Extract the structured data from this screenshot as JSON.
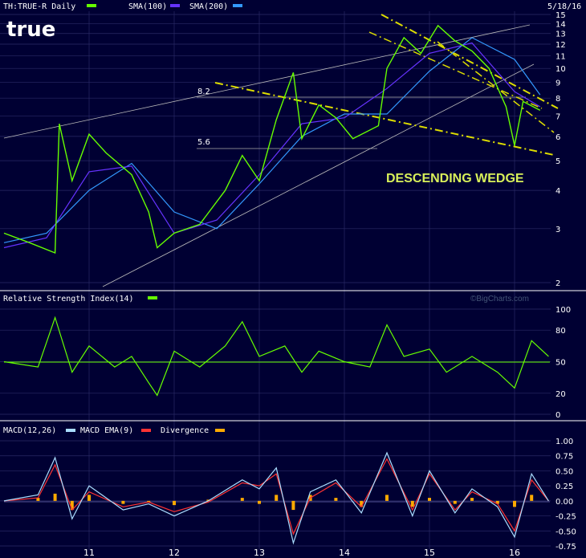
{
  "header": {
    "ticker_label": "TH:TRUE-R Daily",
    "sma100_label": "SMA(100)",
    "sma200_label": "SMA(200)",
    "date": "5/18/16",
    "logo": "true"
  },
  "annotations": {
    "level_high": "8.2",
    "level_low": "5.6",
    "pattern": "DESCENDING WEDGE",
    "credit": "©BigCharts.com"
  },
  "colors": {
    "background": "#000033",
    "grid": "#2a2a66",
    "price": "#66ff00",
    "sma100": "#6633ff",
    "sma200": "#3399ff",
    "trendline": "#dddd00",
    "channel": "#bbbbbb",
    "macd": "#aaddff",
    "macd_ema": "#ff3333",
    "divergence": "#ffaa00"
  },
  "chart_data": [
    {
      "type": "line",
      "title": "TH:TRUE-R Daily",
      "y_scale": "log",
      "ylim": [
        2,
        15
      ],
      "yticks": [
        "2",
        "3",
        "4",
        "5",
        "6",
        "7",
        "8",
        "9",
        "10",
        "11",
        "12",
        "13",
        "14",
        "15"
      ],
      "x_ticks": [
        "11",
        "12",
        "13",
        "14",
        "15",
        "16"
      ],
      "series": [
        {
          "name": "TH:TRUE-R Daily",
          "x": [
            10.0,
            10.3,
            10.6,
            10.65,
            10.8,
            11.0,
            11.2,
            11.5,
            11.7,
            11.8,
            12.0,
            12.3,
            12.6,
            12.8,
            13.0,
            13.2,
            13.4,
            13.5,
            13.7,
            13.9,
            14.1,
            14.4,
            14.5,
            14.7,
            14.9,
            15.1,
            15.3,
            15.5,
            15.7,
            15.9,
            16.0,
            16.1,
            16.3
          ],
          "y": [
            2.9,
            2.7,
            2.5,
            6.6,
            4.3,
            6.1,
            5.3,
            4.5,
            3.4,
            2.6,
            2.9,
            3.1,
            4.0,
            5.2,
            4.3,
            6.8,
            9.7,
            5.9,
            7.6,
            6.9,
            5.9,
            6.5,
            10.0,
            12.6,
            11.2,
            13.8,
            12.3,
            11.4,
            10.0,
            7.5,
            5.6,
            7.8,
            7.3
          ]
        },
        {
          "name": "SMA(100)",
          "x": [
            10.0,
            10.5,
            11.0,
            11.5,
            12.0,
            12.5,
            13.0,
            13.5,
            14.0,
            14.5,
            15.0,
            15.5,
            16.0,
            16.3
          ],
          "y": [
            2.6,
            2.8,
            4.6,
            4.8,
            2.9,
            3.2,
            4.5,
            6.6,
            6.9,
            8.6,
            11.2,
            12.1,
            8.4,
            7.5
          ]
        },
        {
          "name": "SMA(200)",
          "x": [
            10.0,
            10.5,
            11.0,
            11.5,
            12.0,
            12.5,
            13.0,
            13.5,
            14.0,
            14.5,
            15.0,
            15.5,
            16.0,
            16.3
          ],
          "y": [
            2.7,
            2.9,
            4.0,
            4.9,
            3.4,
            3.0,
            4.2,
            6.0,
            7.1,
            7.1,
            9.8,
            12.6,
            10.7,
            8.2
          ]
        }
      ]
    },
    {
      "type": "line",
      "title": "Relative Strength Index(14)",
      "ylim": [
        0,
        100
      ],
      "yticks": [
        "0",
        "20",
        "50",
        "80",
        "100"
      ],
      "series": [
        {
          "name": "Relative Strength Index(14)",
          "x": [
            10.0,
            10.4,
            10.6,
            10.8,
            11.0,
            11.3,
            11.5,
            11.7,
            11.8,
            12.0,
            12.3,
            12.6,
            12.8,
            13.0,
            13.3,
            13.5,
            13.7,
            14.0,
            14.3,
            14.5,
            14.7,
            15.0,
            15.2,
            15.5,
            15.8,
            16.0,
            16.2,
            16.4
          ],
          "y": [
            50,
            45,
            92,
            40,
            65,
            45,
            55,
            30,
            18,
            60,
            45,
            65,
            88,
            55,
            65,
            40,
            60,
            50,
            45,
            85,
            55,
            62,
            40,
            55,
            40,
            25,
            70,
            55
          ]
        }
      ]
    },
    {
      "type": "line",
      "title": "MACD(12,26)",
      "ylim": [
        -0.75,
        1.0
      ],
      "yticks": [
        "1.00",
        "0.75",
        "0.50",
        "0.25",
        "0.00",
        "-0.25",
        "-0.50",
        "-0.75"
      ],
      "series": [
        {
          "name": "MACD(12,26)",
          "x": [
            10.0,
            10.4,
            10.6,
            10.8,
            11.0,
            11.4,
            11.7,
            12.0,
            12.4,
            12.8,
            13.0,
            13.2,
            13.4,
            13.6,
            13.9,
            14.2,
            14.5,
            14.8,
            15.0,
            15.3,
            15.5,
            15.8,
            16.0,
            16.2,
            16.4
          ],
          "y": [
            0.0,
            0.1,
            0.72,
            -0.3,
            0.25,
            -0.15,
            -0.05,
            -0.25,
            0.0,
            0.35,
            0.2,
            0.55,
            -0.7,
            0.15,
            0.35,
            -0.2,
            0.8,
            -0.25,
            0.5,
            -0.2,
            0.2,
            -0.1,
            -0.6,
            0.45,
            0.0
          ]
        },
        {
          "name": "MACD EMA(9)",
          "x": [
            10.0,
            10.4,
            10.6,
            10.8,
            11.0,
            11.4,
            11.7,
            12.0,
            12.4,
            12.8,
            13.0,
            13.2,
            13.4,
            13.6,
            13.9,
            14.2,
            14.5,
            14.8,
            15.0,
            15.3,
            15.5,
            15.8,
            16.0,
            16.2,
            16.4
          ],
          "y": [
            0.0,
            0.05,
            0.6,
            -0.15,
            0.15,
            -0.1,
            -0.02,
            -0.18,
            -0.02,
            0.3,
            0.25,
            0.45,
            -0.55,
            0.05,
            0.3,
            -0.1,
            0.7,
            -0.15,
            0.45,
            -0.15,
            0.15,
            -0.05,
            -0.5,
            0.35,
            0.0
          ]
        },
        {
          "name": "Divergence",
          "x": [
            10.0,
            10.4,
            10.6,
            10.8,
            11.0,
            11.4,
            11.7,
            12.0,
            12.4,
            12.8,
            13.0,
            13.2,
            13.4,
            13.6,
            13.9,
            14.2,
            14.5,
            14.8,
            15.0,
            15.3,
            15.5,
            15.8,
            16.0,
            16.2,
            16.4
          ],
          "y": [
            0.0,
            0.05,
            0.12,
            -0.15,
            0.1,
            -0.05,
            -0.03,
            -0.07,
            0.02,
            0.05,
            -0.05,
            0.1,
            -0.15,
            0.1,
            0.05,
            -0.1,
            0.1,
            -0.1,
            0.05,
            -0.05,
            0.05,
            -0.05,
            -0.1,
            0.1,
            0.0
          ]
        }
      ]
    }
  ]
}
